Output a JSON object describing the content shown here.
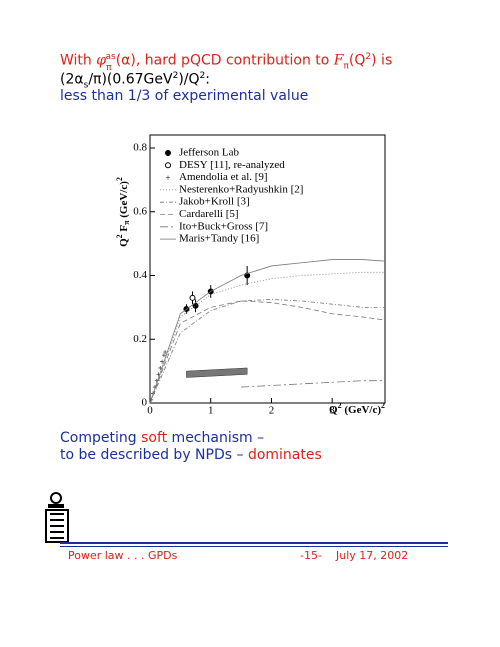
{
  "header": {
    "line1": [
      "With ",
      "φ",
      "π",
      "as",
      "(α)",
      ", hard pQCD contribution to ",
      "F",
      "π",
      "(Q",
      "2",
      ") is"
    ],
    "line2": [
      "(2α",
      "s",
      "/π)(0.67GeV",
      "2",
      ")/Q",
      "2",
      ":"
    ],
    "line3": "less than 1/3 of experimental value"
  },
  "chart_data": {
    "type": "line",
    "ylabel": [
      "Q",
      "2",
      " F",
      "π",
      "  (GeV/c)",
      "2"
    ],
    "xlabel": [
      "Q",
      "2",
      "  (GeV/c)",
      "2"
    ],
    "xlim": [
      0,
      3.87
    ],
    "ylim": [
      0,
      0.8
    ],
    "xticks": [
      0,
      1,
      2,
      3
    ],
    "yticks": [
      0,
      0.2,
      0.4,
      0.6,
      0.8
    ],
    "series": [
      {
        "name": "Jefferson Lab",
        "marker": "filled-circle",
        "color": "#000000",
        "x": [
          0.6,
          0.75,
          1.0,
          1.6
        ],
        "values": [
          0.295,
          0.305,
          0.35,
          0.4
        ],
        "errors": [
          0.015,
          0.02,
          0.02,
          0.03
        ]
      },
      {
        "name": "DESY [11], re-analyzed",
        "marker": "open-circle",
        "color": "#000000",
        "x": [
          0.7
        ],
        "values": [
          0.33
        ],
        "errors": [
          0.02
        ]
      },
      {
        "name": "Amendolia et al. [9]",
        "marker": "plus",
        "color": "#555555",
        "x": [
          0.02,
          0.05,
          0.08,
          0.11,
          0.14,
          0.17,
          0.2,
          0.23,
          0.25
        ],
        "values": [
          0.01,
          0.03,
          0.05,
          0.07,
          0.09,
          0.11,
          0.13,
          0.15,
          0.16
        ]
      },
      {
        "name": "Nesterenko+Radyushkin [2]",
        "style": "dotted",
        "color": "#777777",
        "x": [
          0,
          0.5,
          1,
          1.5,
          2,
          2.5,
          3,
          3.5,
          3.87
        ],
        "values": [
          0,
          0.27,
          0.34,
          0.37,
          0.39,
          0.4,
          0.405,
          0.41,
          0.41
        ]
      },
      {
        "name": "Jakob+Kroll [3]",
        "style": "dash-dot",
        "color": "#777777",
        "x": [
          0,
          0.5,
          1,
          1.5,
          2,
          2.5,
          3,
          3.5,
          3.87
        ],
        "values": [
          0,
          0.22,
          0.29,
          0.32,
          0.325,
          0.32,
          0.31,
          0.3,
          0.3
        ]
      },
      {
        "name": "Cardarelli [5]",
        "style": "dashed",
        "color": "#777777",
        "x": [
          0,
          0.5,
          1,
          1.5,
          2,
          2.5,
          3,
          3.5,
          3.87
        ],
        "values": [
          0,
          0.25,
          0.3,
          0.32,
          0.315,
          0.3,
          0.28,
          0.27,
          0.26
        ]
      },
      {
        "name": "Ito+Buck+Gross [7]",
        "style": "dash-dot-long",
        "color": "#777777",
        "x": [
          1.5,
          2,
          2.5,
          3,
          3.5,
          3.87
        ],
        "values": [
          0.05,
          0.055,
          0.06,
          0.065,
          0.07,
          0.07
        ]
      },
      {
        "name": "Maris+Tandy [16]",
        "style": "solid",
        "color": "#777777",
        "x": [
          0,
          0.5,
          1,
          1.5,
          2,
          2.5,
          3,
          3.5,
          3.87
        ],
        "values": [
          0,
          0.28,
          0.35,
          0.4,
          0.43,
          0.44,
          0.45,
          0.45,
          0.445
        ]
      }
    ],
    "band": {
      "color": "#777777",
      "x": [
        0.6,
        1.6
      ],
      "lower": [
        0.08,
        0.09
      ],
      "upper": [
        0.1,
        0.11
      ]
    }
  },
  "body": {
    "line1": [
      "Competing ",
      "soft",
      " mechanism –"
    ],
    "line2": [
      "to be described by NPDs – ",
      "dominates"
    ]
  },
  "footer": {
    "left": "Power law . . . GPDs",
    "page": "-15-",
    "date": "July 17, 2002"
  }
}
